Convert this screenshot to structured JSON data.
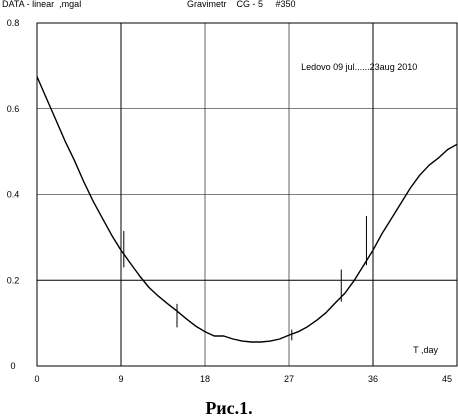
{
  "header": {
    "left": "DATA - linear  ,mgal",
    "center": "Gravimetr    CG - 5     #350"
  },
  "caption": "Рис.1.",
  "chart_data": {
    "type": "line",
    "annotation": "Ledovo  09 jul......23aug 2010",
    "xlabel": "T ,day",
    "ylabel": "",
    "xlim": [
      0,
      45
    ],
    "ylim": [
      0,
      0.8
    ],
    "x_ticks": [
      0,
      9,
      18,
      27,
      36,
      45
    ],
    "x_tick_labels": [
      "0",
      "9",
      "18",
      "27",
      "36",
      "45"
    ],
    "y_ticks": [
      0,
      0.2,
      0.4,
      0.6,
      0.8
    ],
    "y_tick_labels": [
      "0",
      "0.2",
      "0.4",
      "0.6",
      "0.8"
    ],
    "grid": true,
    "series": [
      {
        "name": "",
        "color": "#000000",
        "x": [
          0,
          1,
          2,
          3,
          4,
          5,
          6,
          7,
          8,
          9,
          10,
          11,
          12,
          13,
          14,
          15,
          16,
          17,
          18,
          19,
          20,
          21,
          22,
          23,
          24,
          25,
          26,
          27,
          28,
          29,
          30,
          31,
          32,
          33,
          34,
          35,
          36,
          37,
          38,
          39,
          40,
          41,
          42,
          43,
          44,
          45
        ],
        "y": [
          0.675,
          0.625,
          0.575,
          0.525,
          0.48,
          0.43,
          0.385,
          0.345,
          0.305,
          0.27,
          0.24,
          0.21,
          0.183,
          0.163,
          0.145,
          0.128,
          0.11,
          0.093,
          0.08,
          0.07,
          0.07,
          0.063,
          0.058,
          0.056,
          0.056,
          0.058,
          0.063,
          0.072,
          0.08,
          0.092,
          0.107,
          0.125,
          0.148,
          0.17,
          0.2,
          0.235,
          0.27,
          0.31,
          0.345,
          0.38,
          0.415,
          0.445,
          0.468,
          0.485,
          0.505,
          0.517
        ]
      }
    ],
    "spikes": [
      {
        "x": 9.3,
        "y1": 0.23,
        "y2": 0.315
      },
      {
        "x": 15,
        "y1": 0.09,
        "y2": 0.145
      },
      {
        "x": 27.3,
        "y1": 0.06,
        "y2": 0.085
      },
      {
        "x": 32.6,
        "y1": 0.15,
        "y2": 0.225
      },
      {
        "x": 35.3,
        "y1": 0.235,
        "y2": 0.35
      }
    ]
  }
}
